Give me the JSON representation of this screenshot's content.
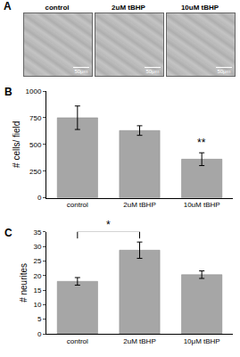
{
  "panels": [
    "A",
    "B",
    "C"
  ],
  "images": {
    "labels": [
      "control",
      "2uM tBHP",
      "10uM tBHP"
    ],
    "scale_bar": "50μm"
  },
  "chart_data": [
    {
      "type": "bar",
      "categories": [
        "control",
        "2uM tBHP",
        "10uM tBHP"
      ],
      "values": [
        750,
        630,
        362
      ],
      "errors": [
        110,
        45,
        60
      ],
      "color": "#a6a6a6",
      "ylim": [
        0,
        1000
      ],
      "yticks": [
        0,
        250,
        500,
        750,
        1000
      ],
      "y_label": "# cells/ field",
      "annotations": [
        {
          "text": "**",
          "categories": [
            "10uM tBHP"
          ]
        }
      ]
    },
    {
      "type": "bar",
      "categories": [
        "control",
        "2uM tBHP",
        "10μM tBHP"
      ],
      "values": [
        18,
        28.7,
        20.3
      ],
      "errors": [
        1.3,
        2.8,
        1.3
      ],
      "color": "#a6a6a6",
      "ylim": [
        0,
        35
      ],
      "yticks": [
        0,
        5,
        10,
        15,
        20,
        25,
        30,
        35
      ],
      "y_label": "# neurites",
      "annotations": [
        {
          "text": "*",
          "categories": [
            "control",
            "2uM tBHP"
          ]
        }
      ]
    }
  ]
}
